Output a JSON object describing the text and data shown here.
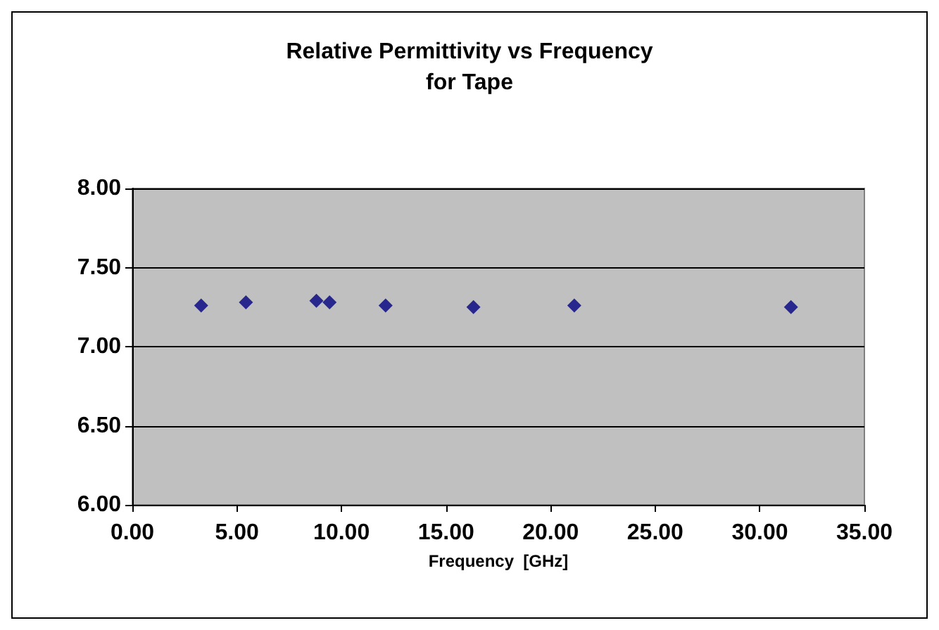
{
  "chart_data": {
    "type": "scatter",
    "title": "Relative Permittivity vs Frequency\nfor Tape",
    "xlabel": "Frequency  [GHz]",
    "x": [
      3.29,
      5.43,
      8.8,
      9.43,
      12.11,
      16.31,
      21.13,
      31.49
    ],
    "series": [
      {
        "color": "#000080",
        "values": [
          7.26,
          7.28,
          7.29,
          7.28,
          7.26,
          7.25,
          7.26,
          7.25
        ]
      }
    ],
    "xlim": [
      0,
      35
    ],
    "xticks": [
      {
        "value": 0,
        "label": "0.00"
      },
      {
        "value": 5,
        "label": "5.00"
      },
      {
        "value": 10,
        "label": "10.00"
      },
      {
        "value": 15,
        "label": "15.00"
      },
      {
        "value": 20,
        "label": "20.00"
      },
      {
        "value": 25,
        "label": "25.00"
      },
      {
        "value": 30,
        "label": "30.00"
      },
      {
        "value": 35,
        "label": "35.00"
      }
    ],
    "ylim": [
      6,
      8
    ],
    "yticks": [
      {
        "value": 6,
        "label": "6.00"
      },
      {
        "value": 6.5,
        "label": "6.50"
      },
      {
        "value": 7,
        "label": "7.00"
      },
      {
        "value": 7.5,
        "label": "7.50"
      },
      {
        "value": 8,
        "label": "8.00"
      }
    ],
    "grid": "y",
    "marker": "diamond"
  }
}
